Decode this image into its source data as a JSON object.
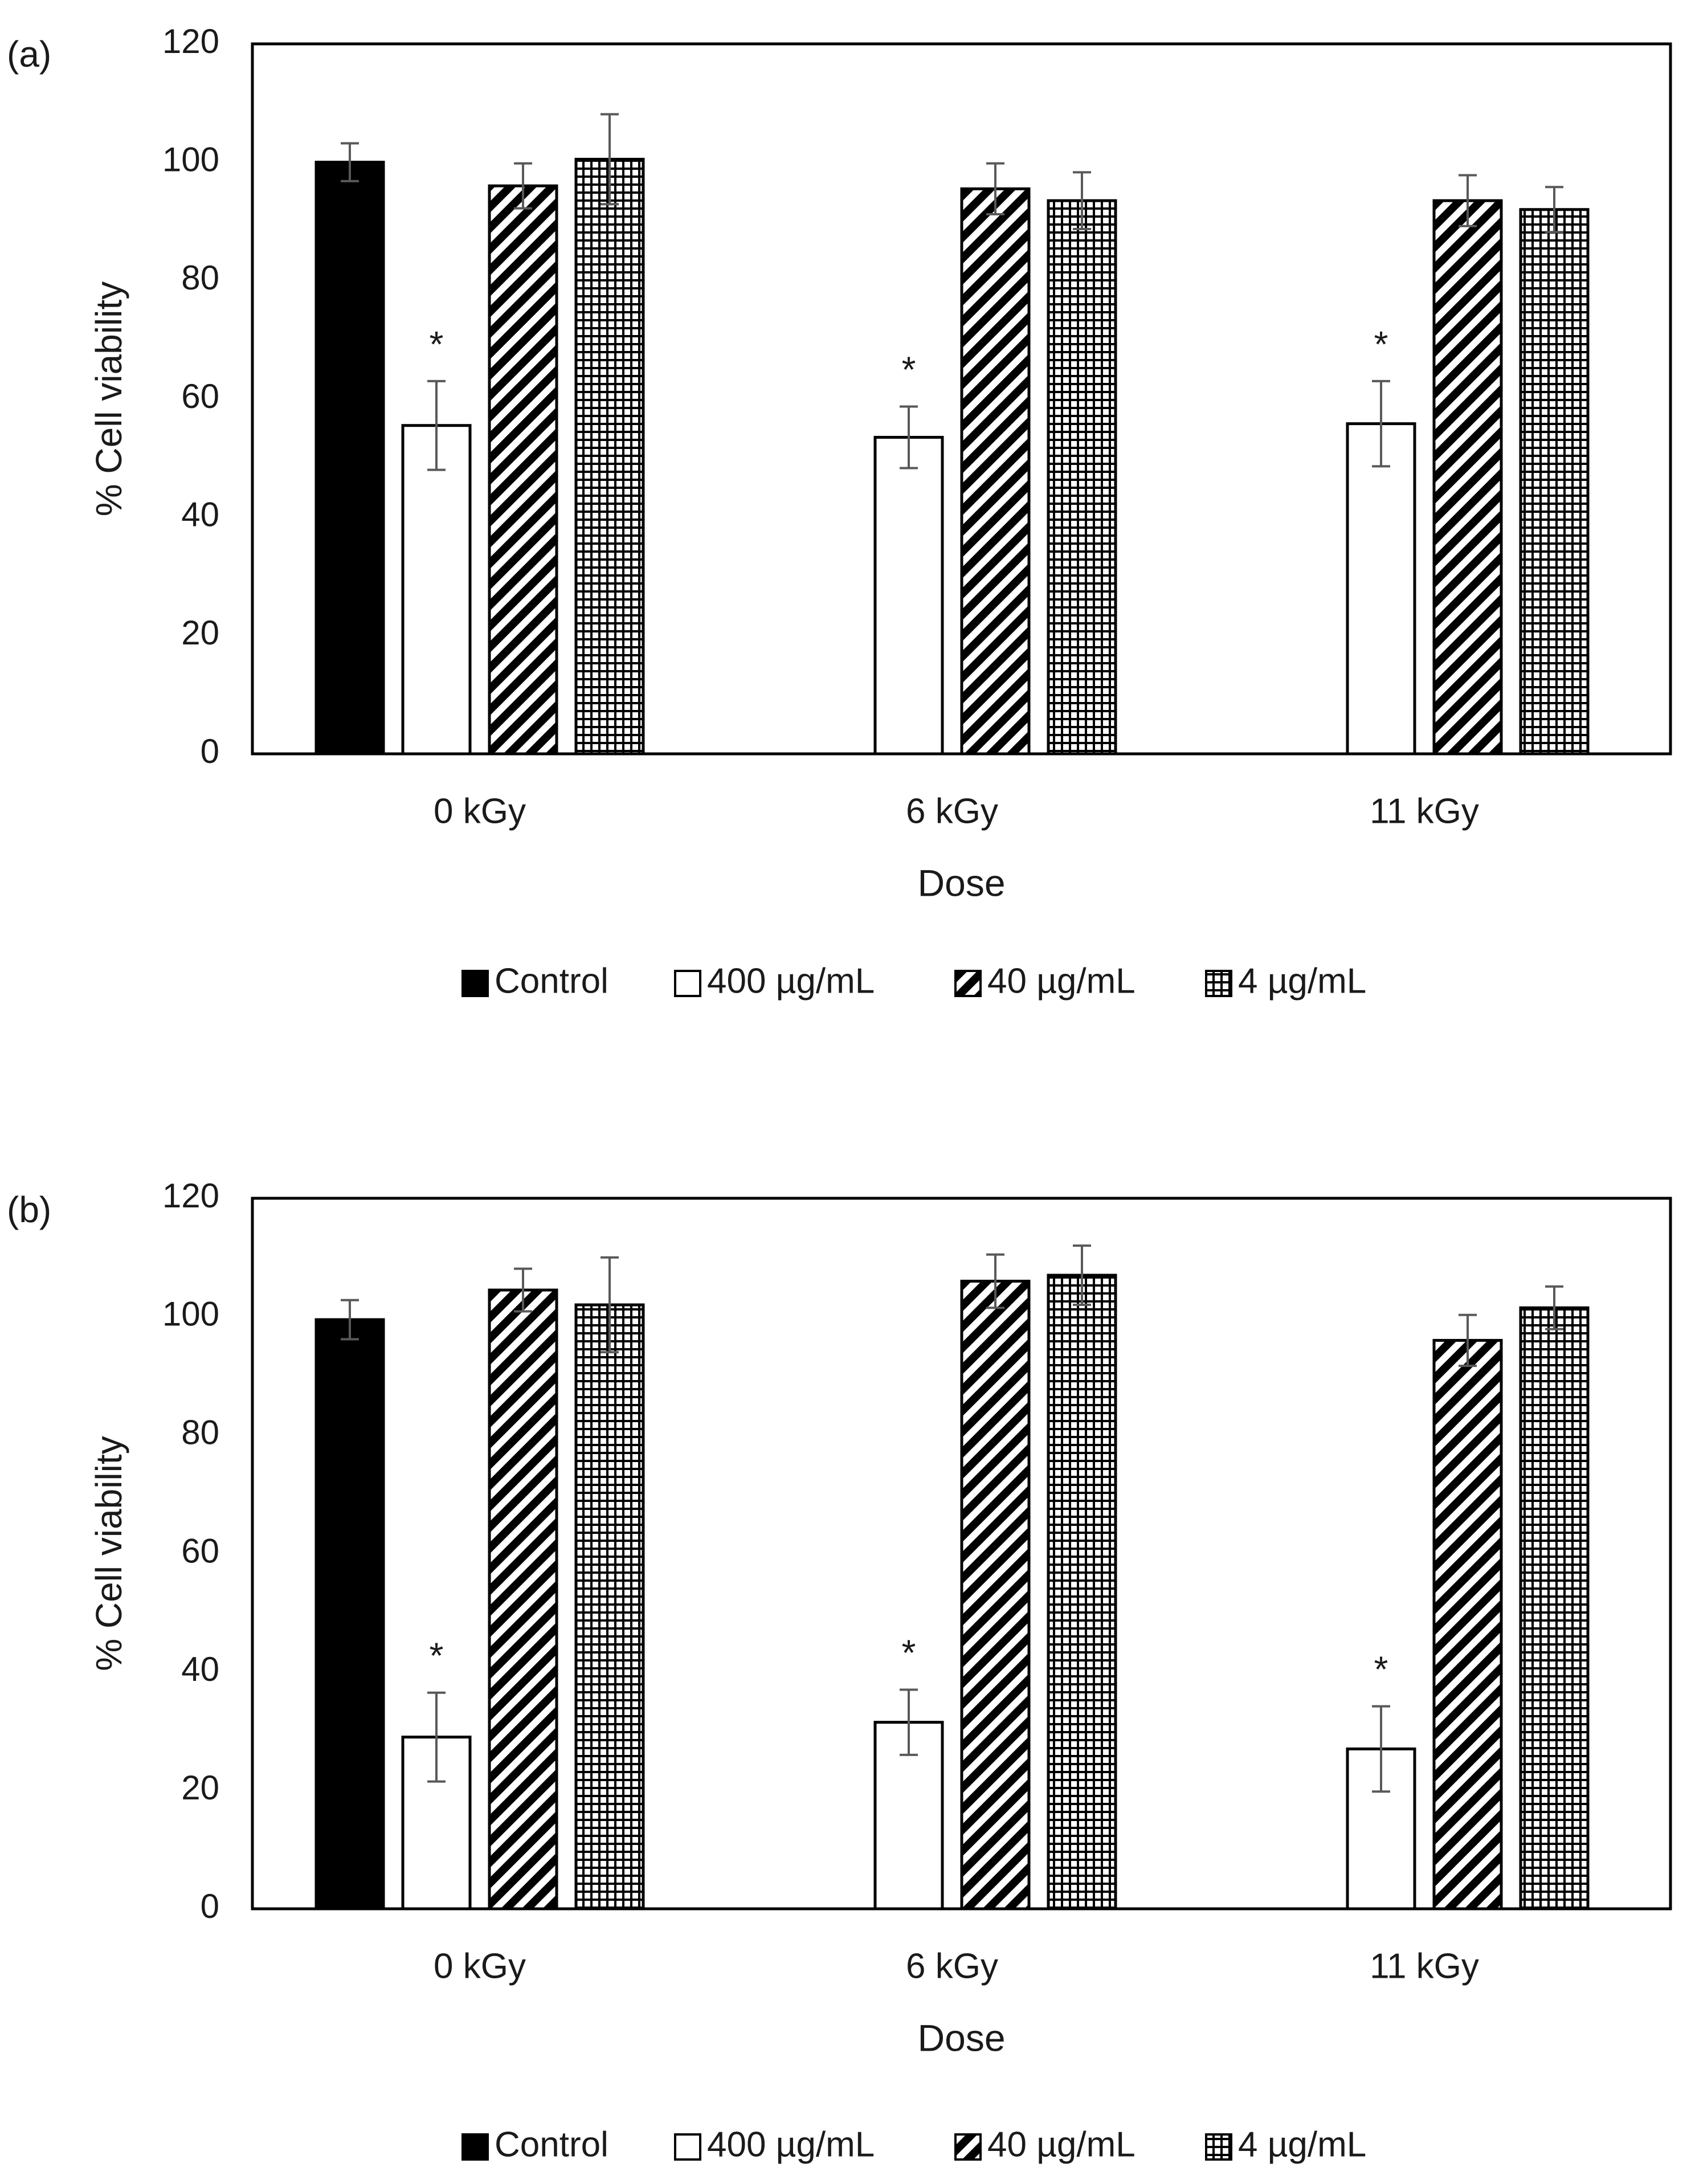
{
  "chart_data": [
    {
      "panel_label": "(a)",
      "type": "bar",
      "categories": [
        "0 kGy",
        "6 kGy",
        "11 kGy"
      ],
      "series": [
        {
          "name": "Control",
          "values": [
            100,
            null,
            null
          ],
          "errors": [
            3.2,
            null,
            null
          ]
        },
        {
          "name": "400 µg/mL",
          "values": [
            55.5,
            53.5,
            55.8
          ],
          "errors": [
            7.5,
            5.2,
            7.2
          ]
        },
        {
          "name": "40 µg/mL",
          "values": [
            96,
            95.5,
            93.5
          ],
          "errors": [
            3.8,
            4.3,
            4.3
          ]
        },
        {
          "name": "4 µg/mL",
          "values": [
            100.5,
            93.5,
            92
          ],
          "errors": [
            7.6,
            4.8,
            3.8
          ]
        }
      ],
      "annotations": [
        {
          "category": "0 kGy",
          "series": "400 µg/mL",
          "text": "*"
        },
        {
          "category": "6 kGy",
          "series": "400 µg/mL",
          "text": "*"
        },
        {
          "category": "11 kGy",
          "series": "400 µg/mL",
          "text": "*"
        }
      ],
      "title": "",
      "xlabel": "Dose",
      "ylabel": "% Cell viability",
      "ylim": [
        0,
        120
      ],
      "yticks": [
        "0",
        "20",
        "40",
        "60",
        "80",
        "100",
        "120"
      ],
      "grid": false,
      "legend": [
        "Control",
        "400 µg/mL",
        "40 µg/mL",
        "4 µg/mL"
      ],
      "legend_position": "bottom"
    },
    {
      "panel_label": "(b)",
      "type": "bar",
      "categories": [
        "0 kGy",
        "6 kGy",
        "11 kGy"
      ],
      "series": [
        {
          "name": "Control",
          "values": [
            99.5,
            null,
            null
          ],
          "errors": [
            3.3,
            null,
            null
          ]
        },
        {
          "name": "400 µg/mL",
          "values": [
            29,
            31.5,
            27
          ],
          "errors": [
            7.5,
            5.5,
            7.2
          ]
        },
        {
          "name": "40 µg/mL",
          "values": [
            104.5,
            106,
            96
          ],
          "errors": [
            3.6,
            4.5,
            4.3
          ]
        },
        {
          "name": "4 µg/mL",
          "values": [
            102,
            107,
            101.5
          ],
          "errors": [
            8,
            5,
            3.6
          ]
        }
      ],
      "annotations": [
        {
          "category": "0 kGy",
          "series": "400 µg/mL",
          "text": "*"
        },
        {
          "category": "6 kGy",
          "series": "400 µg/mL",
          "text": "*"
        },
        {
          "category": "11 kGy",
          "series": "400 µg/mL",
          "text": "*"
        }
      ],
      "title": "",
      "xlabel": "Dose",
      "ylabel": "% Cell viability",
      "ylim": [
        0,
        120
      ],
      "yticks": [
        "0",
        "20",
        "40",
        "60",
        "80",
        "100",
        "120"
      ],
      "grid": false,
      "legend": [
        "Control",
        "400 µg/mL",
        "40 µg/mL",
        "4 µg/mL"
      ],
      "legend_position": "bottom"
    }
  ],
  "colors": {
    "bar_fill": "#000000",
    "bar_edge": "#000000",
    "error_bar": "#595959",
    "axis": "#000000",
    "text": "#1a1a1a"
  }
}
